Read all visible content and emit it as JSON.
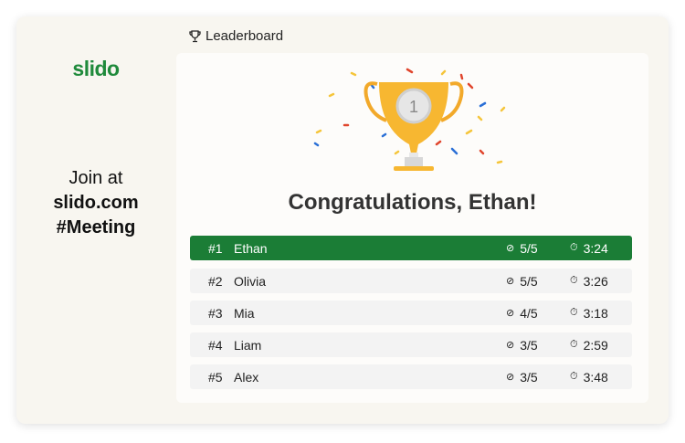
{
  "brand": {
    "logo": "slido",
    "accent": "#1b7d36"
  },
  "join": {
    "line1": "Join at",
    "line2": "slido.com",
    "line3": "#Meeting"
  },
  "header": {
    "title": "Leaderboard",
    "icon": "trophy-icon"
  },
  "main": {
    "congrats": "Congratulations, Ethan!",
    "trophy_badge": "1",
    "rows": [
      {
        "rank": "#1",
        "name": "Ethan",
        "score": "5/5",
        "time": "3:24"
      },
      {
        "rank": "#2",
        "name": "Olivia",
        "score": "5/5",
        "time": "3:26"
      },
      {
        "rank": "#3",
        "name": "Mia",
        "score": "4/5",
        "time": "3:18"
      },
      {
        "rank": "#4",
        "name": "Liam",
        "score": "3/5",
        "time": "2:59"
      },
      {
        "rank": "#5",
        "name": "Alex",
        "score": "3/5",
        "time": "3:48"
      }
    ]
  }
}
